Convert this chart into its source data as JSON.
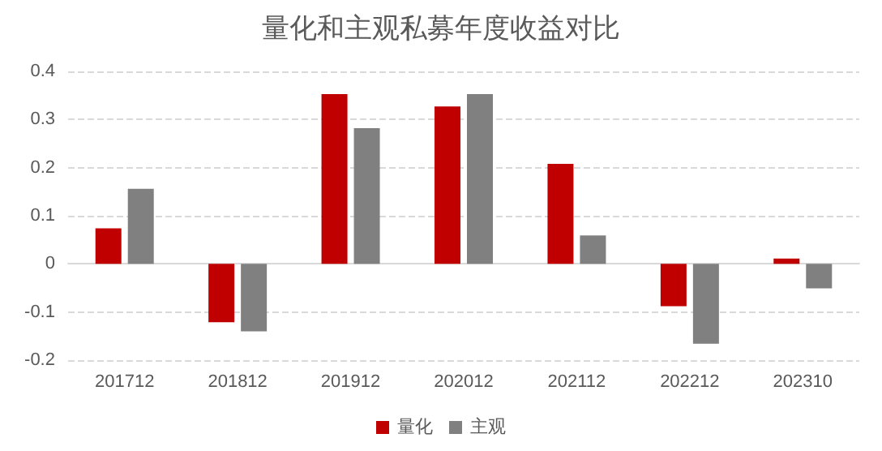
{
  "chart_data": {
    "type": "bar",
    "title": "量化和主观私募年度收益对比",
    "categories": [
      "201712",
      "201812",
      "201912",
      "202012",
      "202112",
      "202212",
      "202310"
    ],
    "series": [
      {
        "name": "量化",
        "color": "#c00000",
        "values": [
          0.074,
          -0.121,
          0.353,
          0.327,
          0.208,
          -0.088,
          0.011
        ]
      },
      {
        "name": "主观",
        "color": "#808080",
        "values": [
          0.156,
          -0.14,
          0.282,
          0.353,
          0.059,
          -0.166,
          -0.051
        ]
      }
    ],
    "ylim": [
      -0.2,
      0.4
    ],
    "yticks": [
      -0.2,
      -0.1,
      0,
      0.1,
      0.2,
      0.3,
      0.4
    ],
    "grid": "y",
    "legend": "bottom"
  }
}
